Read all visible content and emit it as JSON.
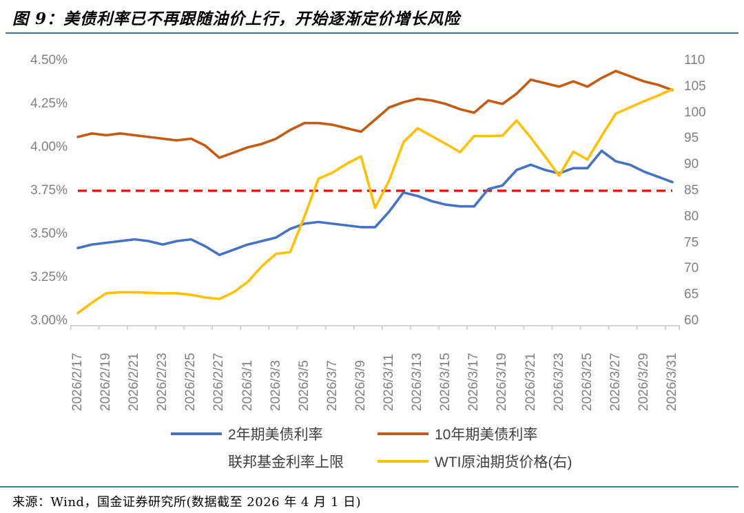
{
  "figure": {
    "title": "图 9：美债利率已不再跟随油价上行，开始逐渐定价增长风险",
    "source_note": "来源：Wind，国金证券研究所(数据截至 2026 年 4 月 1 日)"
  },
  "colors": {
    "two_year_line": "#4472C4",
    "ten_year_line": "#C55A11",
    "fed_cap_line": "#FF0000",
    "wti_line": "#FFC000",
    "rule_line": "#3C7E8F",
    "axis_text": "#7F7F7F",
    "axis_line": "#C6C6C6",
    "legend_text": "#3F3F3F"
  },
  "chart_data": {
    "type": "line",
    "left_axis": {
      "min": 3.0,
      "max": 4.5,
      "ticks": [
        "4.50%",
        "4.25%",
        "4.00%",
        "3.75%",
        "3.50%",
        "3.25%",
        "3.00%"
      ],
      "tick_values": [
        4.5,
        4.25,
        4.0,
        3.75,
        3.5,
        3.25,
        3.0
      ]
    },
    "right_axis": {
      "min": 60,
      "max": 110,
      "ticks": [
        "110",
        "105",
        "100",
        "95",
        "90",
        "85",
        "80",
        "75",
        "70",
        "65",
        "60"
      ],
      "tick_values": [
        110,
        105,
        100,
        95,
        90,
        85,
        80,
        75,
        70,
        65,
        60
      ]
    },
    "x_labels": [
      "2026/2/17",
      "2026/2/19",
      "2026/2/21",
      "2026/2/23",
      "2026/2/25",
      "2026/2/27",
      "2026/3/1",
      "2026/3/3",
      "2026/3/5",
      "2026/3/7",
      "2026/3/9",
      "2026/3/11",
      "2026/3/13",
      "2026/3/15",
      "2026/3/17",
      "2026/3/19",
      "2026/3/21",
      "2026/3/23",
      "2026/3/25",
      "2026/3/27",
      "2026/3/29",
      "2026/3/31"
    ],
    "dates": [
      "2026/2/17",
      "2026/2/18",
      "2026/2/19",
      "2026/2/20",
      "2026/2/21",
      "2026/2/22",
      "2026/2/23",
      "2026/2/24",
      "2026/2/25",
      "2026/2/26",
      "2026/2/27",
      "2026/2/28",
      "2026/3/1",
      "2026/3/2",
      "2026/3/3",
      "2026/3/4",
      "2026/3/5",
      "2026/3/6",
      "2026/3/7",
      "2026/3/8",
      "2026/3/9",
      "2026/3/10",
      "2026/3/11",
      "2026/3/12",
      "2026/3/13",
      "2026/3/14",
      "2026/3/15",
      "2026/3/16",
      "2026/3/17",
      "2026/3/18",
      "2026/3/19",
      "2026/3/20",
      "2026/3/21",
      "2026/3/22",
      "2026/3/23",
      "2026/3/24",
      "2026/3/25",
      "2026/3/26",
      "2026/3/27",
      "2026/3/28",
      "2026/3/29",
      "2026/3/30",
      "2026/3/31"
    ],
    "series": [
      {
        "name": "2年期美债利率",
        "axis": "left",
        "color": "#4472C4",
        "style": "solid",
        "values": [
          3.42,
          3.44,
          3.45,
          3.46,
          3.47,
          3.46,
          3.44,
          3.46,
          3.47,
          3.43,
          3.38,
          3.41,
          3.44,
          3.46,
          3.48,
          3.53,
          3.56,
          3.57,
          3.56,
          3.55,
          3.54,
          3.54,
          3.63,
          3.74,
          3.72,
          3.69,
          3.67,
          3.66,
          3.66,
          3.76,
          3.78,
          3.87,
          3.9,
          3.87,
          3.85,
          3.88,
          3.88,
          3.98,
          3.92,
          3.9,
          3.86,
          3.83,
          3.8
        ]
      },
      {
        "name": "10年期美债利率",
        "axis": "left",
        "color": "#C55A11",
        "style": "solid",
        "values": [
          4.06,
          4.08,
          4.07,
          4.08,
          4.07,
          4.06,
          4.05,
          4.04,
          4.05,
          4.01,
          3.94,
          3.97,
          4.0,
          4.02,
          4.05,
          4.1,
          4.14,
          4.14,
          4.13,
          4.11,
          4.09,
          4.16,
          4.23,
          4.26,
          4.28,
          4.27,
          4.25,
          4.22,
          4.2,
          4.27,
          4.25,
          4.31,
          4.39,
          4.37,
          4.35,
          4.38,
          4.35,
          4.4,
          4.44,
          4.41,
          4.38,
          4.36,
          4.33
        ]
      },
      {
        "name": "联邦基金利率上限",
        "axis": "left",
        "color": "#FF0000",
        "style": "dashed",
        "constant": 3.75
      },
      {
        "name": "WTI原油期货价格(右)",
        "axis": "right",
        "color": "#FFC000",
        "style": "solid",
        "values": [
          61.5,
          63.5,
          65.3,
          65.5,
          65.5,
          65.4,
          65.3,
          65.3,
          65.0,
          64.5,
          64.2,
          65.5,
          67.5,
          70.5,
          72.9,
          73.2,
          80.0,
          87.3,
          88.5,
          90.2,
          91.6,
          81.7,
          87.0,
          94.3,
          97.0,
          95.5,
          94.0,
          92.4,
          95.5,
          95.5,
          95.6,
          98.5,
          95.2,
          91.6,
          87.9,
          92.5,
          91.0,
          95.5,
          99.8,
          101.0,
          102.2,
          103.3,
          104.5
        ]
      }
    ]
  }
}
